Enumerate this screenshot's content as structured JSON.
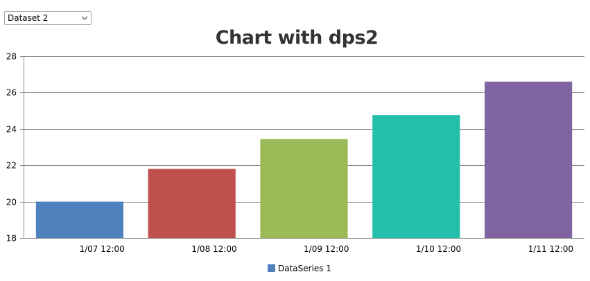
{
  "controls": {
    "dataset_select_value": "Dataset 2",
    "dataset_options": [
      "Dataset 2"
    ]
  },
  "chart_data": {
    "type": "bar",
    "title": "Chart with dps2",
    "xlabel": "",
    "ylabel": "",
    "categories": [
      "1/07 12:00",
      "1/08 12:00",
      "1/09 12:00",
      "1/10 12:00",
      "1/11 12:00"
    ],
    "series": [
      {
        "name": "DataSeries 1",
        "values": [
          20,
          21.8,
          23.45,
          24.75,
          26.6
        ]
      }
    ],
    "bar_colors": [
      "#4f81bc",
      "#c0504e",
      "#9bbb58",
      "#23bfaa",
      "#8064a1"
    ],
    "legend_color": "#4f81bc",
    "ylim": [
      18,
      28
    ],
    "yticks": [
      18,
      20,
      22,
      24,
      26,
      28
    ],
    "grid": true,
    "legend_position": "bottom"
  }
}
